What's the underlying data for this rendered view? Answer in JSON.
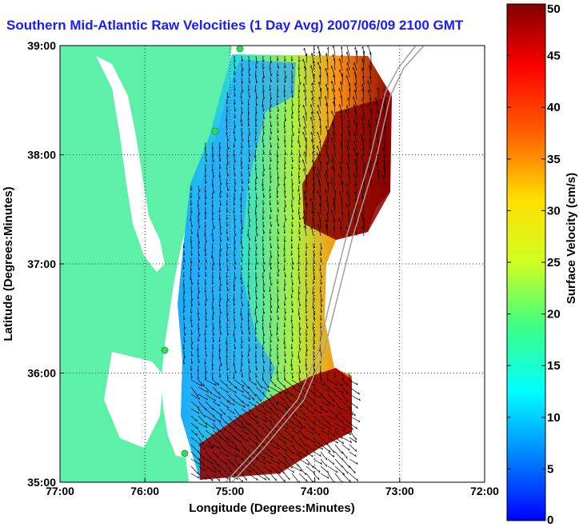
{
  "chart_data": {
    "type": "heatmap",
    "title": "Southern Mid-Atlantic Raw Velocities (1 Day Avg) 2007/06/09 2100 GMT",
    "xlabel": "Longitude (Degrees:Minutes)",
    "ylabel": "Latitude (Degrees:Minutes)",
    "xlim": [
      -77,
      -72
    ],
    "ylim": [
      35,
      39
    ],
    "x_tick_labels": [
      "77:00",
      "76:00",
      "75:00",
      "74:00",
      "73:00",
      "72:00"
    ],
    "y_tick_labels": [
      "35:00",
      "36:00",
      "37:00",
      "38:00",
      "39:00"
    ],
    "grid": true,
    "colorbar": {
      "label": "Surface Velocity (cm/s)",
      "min": 0,
      "max": 50,
      "ticks": [
        "0",
        "5",
        "10",
        "15",
        "20",
        "25",
        "30",
        "35",
        "40",
        "45",
        "50"
      ],
      "colormap": "jet"
    },
    "colors": {
      "land": "#5cf0a8",
      "water_noData": "#ffffff",
      "title": "#1a1aff"
    }
  }
}
